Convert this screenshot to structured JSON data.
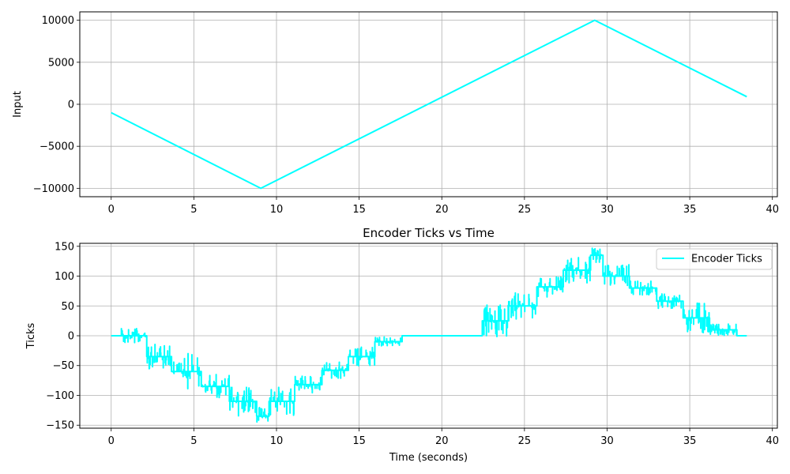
{
  "chart_data": [
    {
      "type": "line",
      "title": "",
      "xlabel": "",
      "ylabel": "Input",
      "xlim": [
        -1.9,
        40.3
      ],
      "ylim": [
        -11000,
        11000
      ],
      "x_ticks": [
        0,
        5,
        10,
        15,
        20,
        25,
        30,
        35,
        40
      ],
      "y_ticks": [
        -10000,
        -5000,
        0,
        5000,
        10000
      ],
      "x_tick_labels": [
        "0",
        "5",
        "10",
        "15",
        "20",
        "25",
        "30",
        "35",
        "40"
      ],
      "y_tick_labels": [
        "−10000",
        "−5000",
        "0",
        "5000",
        "10000"
      ],
      "grid": true,
      "series": [
        {
          "color": "#00ffff",
          "x": [
            0,
            9.05,
            29.25,
            38.45
          ],
          "y": [
            -1000,
            -10000,
            10000,
            900
          ]
        }
      ]
    },
    {
      "type": "line",
      "title": "Encoder Ticks vs Time",
      "xlabel": "Time (seconds)",
      "ylabel": "Ticks",
      "xlim": [
        -1.9,
        40.3
      ],
      "ylim": [
        -155,
        155
      ],
      "x_ticks": [
        0,
        5,
        10,
        15,
        20,
        25,
        30,
        35,
        40
      ],
      "y_ticks": [
        -150,
        -100,
        -50,
        0,
        50,
        100,
        150
      ],
      "x_tick_labels": [
        "0",
        "5",
        "10",
        "15",
        "20",
        "25",
        "30",
        "35",
        "40"
      ],
      "y_tick_labels": [
        "−150",
        "−100",
        "−50",
        "0",
        "50",
        "100",
        "150"
      ],
      "grid": true,
      "legend": "top-right",
      "series": [
        {
          "name": "Encoder Ticks",
          "color": "#00ffff",
          "x": [
            0,
            2.15,
            2.15,
            3.65,
            3.65,
            5.45,
            5.45,
            7.15,
            7.15,
            8.8,
            8.8,
            9.55,
            9.55,
            11.1,
            11.1,
            12.75,
            12.75,
            14.35,
            14.35,
            15.95,
            15.95,
            17.6,
            17.6,
            22.45,
            22.45,
            24.05,
            24.05,
            25.75,
            25.75,
            27.35,
            27.35,
            29.0,
            29.0,
            29.75,
            29.75,
            31.35,
            31.35,
            33.0,
            33.0,
            34.6,
            34.6,
            36.2,
            36.2,
            37.85,
            37.85,
            38.45
          ],
          "y": [
            0,
            0,
            -35,
            -35,
            -60,
            -60,
            -85,
            -85,
            -110,
            -110,
            -135,
            -135,
            -110,
            -110,
            -82,
            -82,
            -58,
            -58,
            -35,
            -35,
            -10,
            -10,
            0,
            0,
            25,
            25,
            50,
            50,
            82,
            82,
            110,
            110,
            135,
            135,
            100,
            100,
            80,
            80,
            58,
            58,
            30,
            30,
            10,
            10,
            0,
            0
          ],
          "noise": [
            {
              "from": 0.6,
              "to": 2.15,
              "amp": 12
            },
            {
              "from": 2.15,
              "to": 3.65,
              "amp": 22
            },
            {
              "from": 3.65,
              "to": 5.45,
              "amp": 32
            },
            {
              "from": 5.45,
              "to": 7.15,
              "amp": 20
            },
            {
              "from": 7.15,
              "to": 8.8,
              "amp": 25
            },
            {
              "from": 8.8,
              "to": 9.55,
              "amp": 15
            },
            {
              "from": 9.55,
              "to": 11.1,
              "amp": 25
            },
            {
              "from": 11.1,
              "to": 12.75,
              "amp": 15
            },
            {
              "from": 12.75,
              "to": 14.35,
              "amp": 14
            },
            {
              "from": 14.35,
              "to": 15.95,
              "amp": 16
            },
            {
              "from": 15.95,
              "to": 17.6,
              "amp": 8
            },
            {
              "from": 22.45,
              "to": 24.05,
              "amp": 28
            },
            {
              "from": 24.05,
              "to": 25.75,
              "amp": 22
            },
            {
              "from": 25.75,
              "to": 27.35,
              "amp": 18
            },
            {
              "from": 27.35,
              "to": 29.0,
              "amp": 22
            },
            {
              "from": 29.0,
              "to": 29.75,
              "amp": 12
            },
            {
              "from": 29.75,
              "to": 31.35,
              "amp": 20
            },
            {
              "from": 31.35,
              "to": 33.0,
              "amp": 12
            },
            {
              "from": 33.0,
              "to": 34.6,
              "amp": 12
            },
            {
              "from": 34.6,
              "to": 36.2,
              "amp": 26
            },
            {
              "from": 36.2,
              "to": 37.85,
              "amp": 10
            }
          ]
        }
      ]
    }
  ]
}
